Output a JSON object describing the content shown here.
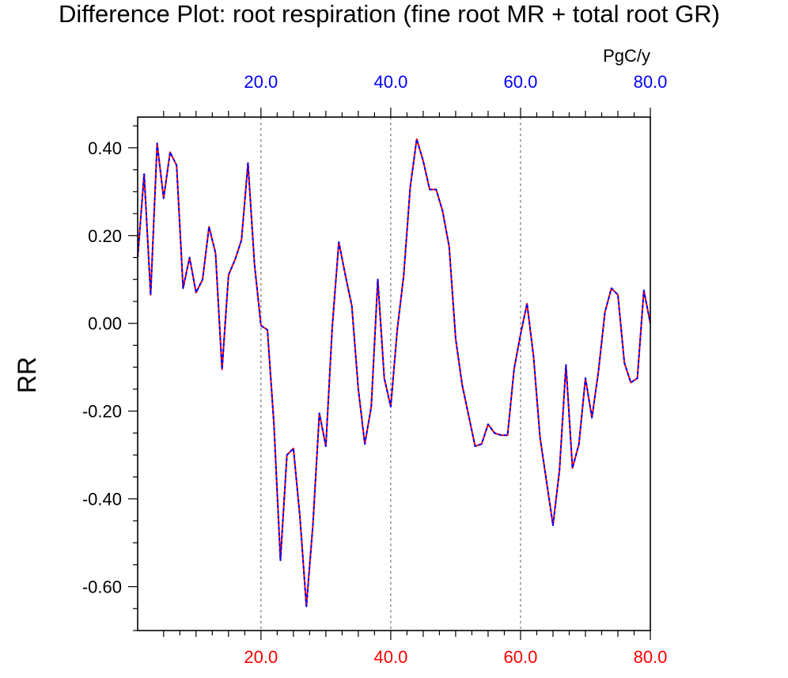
{
  "chart_data": {
    "type": "line",
    "title": "Difference Plot: root respiration (fine root MR + total root GR)",
    "ylabel": "RR",
    "units": "PgC/y",
    "xlim": [
      1,
      80
    ],
    "ylim": [
      -0.7,
      0.47
    ],
    "x_ticks_major": [
      20,
      40,
      60,
      80
    ],
    "x_tick_labels_top": [
      "20.0",
      "40.0",
      "60.0",
      "80.0"
    ],
    "x_tick_labels_bottom": [
      "20.0",
      "40.0",
      "60.0",
      "80.0"
    ],
    "y_ticks_major": [
      0.4,
      0.2,
      0.0,
      -0.2,
      -0.4,
      -0.6
    ],
    "y_tick_labels": [
      "0.40",
      "0.20",
      "0.00",
      "-0.20",
      "-0.40",
      "-0.60"
    ],
    "top_axis_color": "#0000ff",
    "bottom_axis_color": "#ff0000",
    "vertical_gridlines": [
      20,
      40,
      60
    ],
    "series": [
      {
        "name": "series-red",
        "color": "#ff0000",
        "dash": "solid",
        "x": [
          1,
          2,
          3,
          4,
          5,
          6,
          7,
          8,
          9,
          10,
          11,
          12,
          13,
          14,
          15,
          16,
          17,
          18,
          19,
          20,
          21,
          22,
          23,
          24,
          25,
          26,
          27,
          28,
          29,
          30,
          31,
          32,
          33,
          34,
          35,
          36,
          37,
          38,
          39,
          40,
          41,
          42,
          43,
          44,
          45,
          46,
          47,
          48,
          49,
          50,
          51,
          52,
          53,
          54,
          55,
          56,
          57,
          58,
          59,
          60,
          61,
          62,
          63,
          64,
          65,
          66,
          67,
          68,
          69,
          70,
          71,
          72,
          73,
          74,
          75,
          76,
          77,
          78,
          79,
          80
        ],
        "values": [
          0.15,
          0.34,
          0.065,
          0.41,
          0.285,
          0.39,
          0.36,
          0.08,
          0.15,
          0.07,
          0.1,
          0.22,
          0.16,
          -0.105,
          0.11,
          0.145,
          0.19,
          0.365,
          0.135,
          -0.005,
          -0.015,
          -0.23,
          -0.54,
          -0.3,
          -0.285,
          -0.44,
          -0.645,
          -0.46,
          -0.205,
          -0.28,
          -0.005,
          0.185,
          0.11,
          0.04,
          -0.15,
          -0.275,
          -0.19,
          0.1,
          -0.125,
          -0.19,
          -0.015,
          0.11,
          0.31,
          0.42,
          0.37,
          0.305,
          0.305,
          0.255,
          0.175,
          -0.035,
          -0.14,
          -0.21,
          -0.28,
          -0.275,
          -0.23,
          -0.25,
          -0.255,
          -0.255,
          -0.105,
          -0.025,
          0.045,
          -0.075,
          -0.26,
          -0.36,
          -0.46,
          -0.335,
          -0.095,
          -0.33,
          -0.275,
          -0.125,
          -0.215,
          -0.11,
          0.025,
          0.08,
          0.065,
          -0.09,
          -0.135,
          -0.125,
          0.075,
          0.0
        ]
      },
      {
        "name": "series-blue",
        "color": "#0000ff",
        "dash": "dashed",
        "x": [
          1,
          2,
          3,
          4,
          5,
          6,
          7,
          8,
          9,
          10,
          11,
          12,
          13,
          14,
          15,
          16,
          17,
          18,
          19,
          20,
          21,
          22,
          23,
          24,
          25,
          26,
          27,
          28,
          29,
          30,
          31,
          32,
          33,
          34,
          35,
          36,
          37,
          38,
          39,
          40,
          41,
          42,
          43,
          44,
          45,
          46,
          47,
          48,
          49,
          50,
          51,
          52,
          53,
          54,
          55,
          56,
          57,
          58,
          59,
          60,
          61,
          62,
          63,
          64,
          65,
          66,
          67,
          68,
          69,
          70,
          71,
          72,
          73,
          74,
          75,
          76,
          77,
          78,
          79,
          80
        ],
        "values": [
          0.15,
          0.34,
          0.065,
          0.41,
          0.285,
          0.39,
          0.36,
          0.08,
          0.15,
          0.07,
          0.1,
          0.22,
          0.16,
          -0.105,
          0.11,
          0.145,
          0.19,
          0.365,
          0.135,
          -0.005,
          -0.015,
          -0.23,
          -0.54,
          -0.3,
          -0.285,
          -0.44,
          -0.645,
          -0.46,
          -0.205,
          -0.28,
          -0.005,
          0.185,
          0.11,
          0.04,
          -0.15,
          -0.275,
          -0.19,
          0.1,
          -0.125,
          -0.19,
          -0.015,
          0.11,
          0.31,
          0.42,
          0.37,
          0.305,
          0.305,
          0.255,
          0.175,
          -0.035,
          -0.14,
          -0.21,
          -0.28,
          -0.275,
          -0.23,
          -0.25,
          -0.255,
          -0.255,
          -0.105,
          -0.025,
          0.045,
          -0.075,
          -0.26,
          -0.36,
          -0.46,
          -0.335,
          -0.095,
          -0.33,
          -0.275,
          -0.125,
          -0.215,
          -0.11,
          0.025,
          0.08,
          0.065,
          -0.09,
          -0.135,
          -0.125,
          0.075,
          0.0
        ]
      }
    ]
  }
}
